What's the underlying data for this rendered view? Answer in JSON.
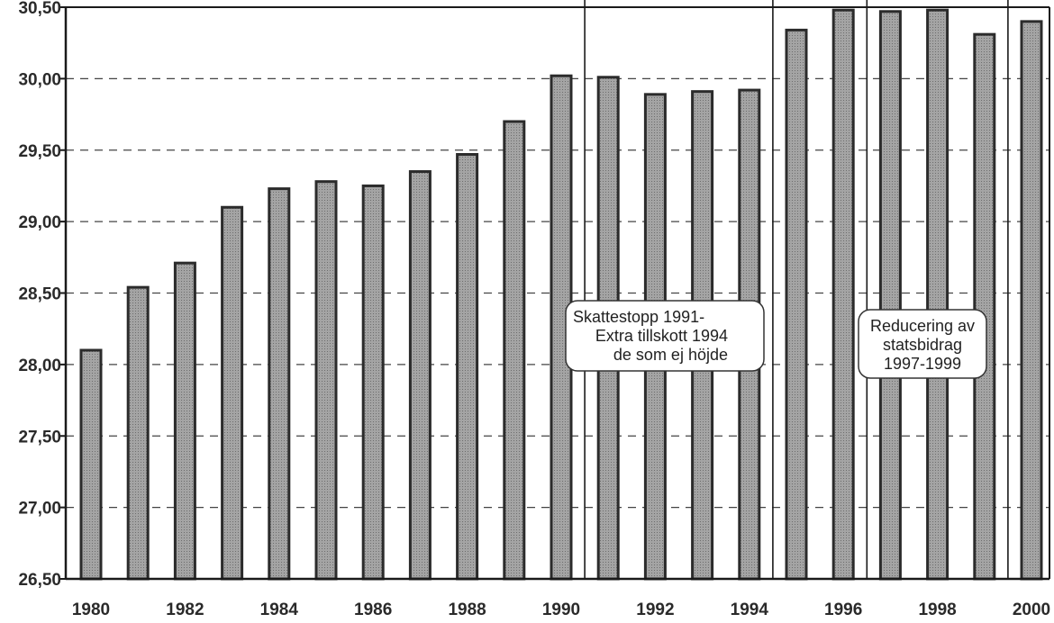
{
  "chart_data": {
    "type": "bar",
    "categories": [
      "1980",
      "1981",
      "1982",
      "1983",
      "1984",
      "1985",
      "1986",
      "1987",
      "1988",
      "1989",
      "1990",
      "1991",
      "1992",
      "1993",
      "1994",
      "1995",
      "1996",
      "1997",
      "1998",
      "1999",
      "2000"
    ],
    "values": [
      28.1,
      28.54,
      28.71,
      29.1,
      29.23,
      29.28,
      29.25,
      29.35,
      29.47,
      29.7,
      30.02,
      30.01,
      29.89,
      29.91,
      29.92,
      30.34,
      30.48,
      30.47,
      30.48,
      30.31,
      30.4
    ],
    "title": "",
    "xlabel": "",
    "ylabel": "",
    "ylim": [
      26.5,
      30.5
    ],
    "yticks": [
      "26,50",
      "27,00",
      "27,50",
      "28,00",
      "28,50",
      "29,00",
      "29,50",
      "30,00",
      "30,50"
    ],
    "xtick_labels": [
      "1980",
      "1982",
      "1984",
      "1986",
      "1988",
      "1990",
      "1992",
      "1994",
      "1996",
      "1998",
      "2000"
    ],
    "grid": "horizontal dashed",
    "period_separators_after": [
      "1990",
      "1994",
      "1996",
      "1999"
    ],
    "annotations": [
      {
        "lines": [
          "Skattestopp 1991-",
          "Extra tillskott 1994",
          "de som ej höjde"
        ]
      },
      {
        "lines": [
          "Reducering av",
          "statsbidrag",
          "1997-1999"
        ]
      }
    ],
    "colors": {
      "bar_fill": "#9a9a9a",
      "bar_stroke": "#2b2b2b",
      "axis": "#1a1a1a",
      "grid": "#444444"
    }
  }
}
